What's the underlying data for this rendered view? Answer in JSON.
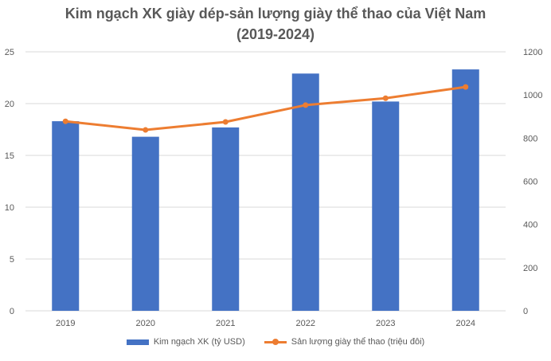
{
  "chart_data": {
    "type": "bar",
    "title_line1": "Kim ngạch XK giày dép-sản lượng giày thể thao của Việt Nam",
    "title_line2": "(2019-2024)",
    "categories": [
      "2019",
      "2020",
      "2021",
      "2022",
      "2023",
      "2024"
    ],
    "series": [
      {
        "name": "Kim ngạch XK (tỷ USD)",
        "type": "bar",
        "axis": "left",
        "color": "#4472C4",
        "values": [
          18.3,
          16.8,
          17.7,
          22.9,
          20.2,
          23.3
        ]
      },
      {
        "name": "Sản lượng giày thể thao (triệu đôi)",
        "type": "line",
        "axis": "right",
        "color": "#ED7D31",
        "values": [
          878,
          838,
          875,
          953,
          985,
          1037
        ]
      }
    ],
    "y_left": {
      "min": 0,
      "max": 25,
      "ticks": [
        "0",
        "5",
        "10",
        "15",
        "20",
        "25"
      ]
    },
    "y_right": {
      "min": 0,
      "max": 1200,
      "ticks": [
        "0",
        "200",
        "400",
        "600",
        "800",
        "1000",
        "1200"
      ]
    },
    "grid": true,
    "legend_position": "bottom"
  }
}
